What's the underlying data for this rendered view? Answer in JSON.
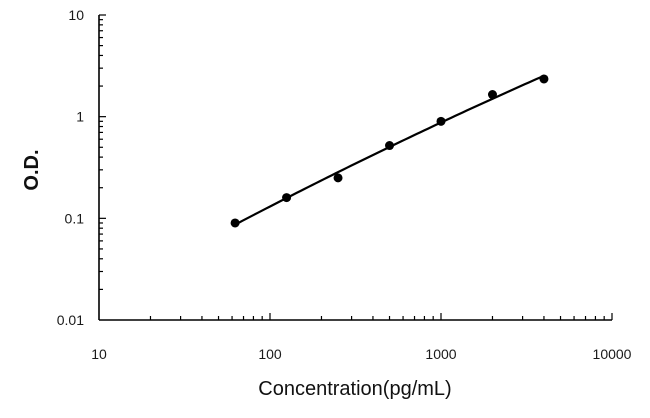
{
  "chart_data": {
    "type": "scatter",
    "title": "",
    "xlabel": "Concentration(pg/mL)",
    "ylabel": "O.D.",
    "x_scale": "log",
    "y_scale": "log",
    "xlim": [
      10,
      10000
    ],
    "ylim": [
      0.01,
      10
    ],
    "x_ticks": [
      10,
      100,
      1000,
      10000
    ],
    "x_tick_labels": [
      "10",
      "100",
      "1000",
      "10000"
    ],
    "y_ticks": [
      0.01,
      0.1,
      1,
      10
    ],
    "y_tick_labels": [
      "0.01",
      "0.1",
      "1",
      "10"
    ],
    "grid": false,
    "legend": "none",
    "series": [
      {
        "x": [
          62.5,
          125,
          250,
          500,
          1000,
          2000,
          4000
        ],
        "y": [
          0.09,
          0.16,
          0.25,
          0.52,
          0.9,
          1.65,
          2.35
        ],
        "marker": "circle",
        "line": "smooth-fit"
      }
    ],
    "colors": {
      "marker": "#000000",
      "curve": "#000000",
      "axis": "#000000"
    }
  }
}
